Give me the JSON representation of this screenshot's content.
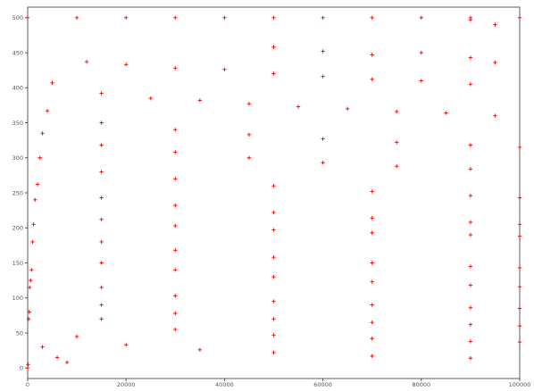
{
  "chart_data": {
    "type": "scatter",
    "marker": "+",
    "marker_color": "#ff0000",
    "title": "",
    "xlabel": "",
    "ylabel": "",
    "xlim": [
      0,
      100000
    ],
    "ylim": [
      -15,
      515
    ],
    "grid": false,
    "legend": "none",
    "x_ticks": [
      0,
      20000,
      40000,
      60000,
      80000,
      100000
    ],
    "x_tick_labels": [
      "0",
      "20000",
      "40000",
      "60000",
      "80000",
      "100000"
    ],
    "y_ticks": [
      0,
      50,
      100,
      150,
      200,
      250,
      300,
      350,
      400,
      450,
      500
    ],
    "y_tick_labels": [
      "0",
      "50",
      "100",
      "150",
      "200",
      "250",
      "300",
      "350",
      "400",
      "450",
      "500"
    ],
    "series": [
      {
        "values_xy": [
          [
            0,
            500
          ],
          [
            10000,
            500
          ],
          [
            20000,
            500
          ],
          [
            30000,
            500
          ],
          [
            40000,
            500
          ],
          [
            50000,
            500
          ],
          [
            60000,
            500
          ],
          [
            70000,
            500
          ],
          [
            80000,
            500
          ],
          [
            90000,
            500
          ],
          [
            100000,
            500
          ],
          [
            90000,
            497
          ],
          [
            95000,
            490
          ],
          [
            50000,
            458
          ],
          [
            60000,
            452
          ],
          [
            70000,
            447
          ],
          [
            80000,
            450
          ],
          [
            90000,
            443
          ],
          [
            95000,
            436
          ],
          [
            12000,
            437
          ],
          [
            20000,
            433
          ],
          [
            30000,
            428
          ],
          [
            40000,
            426
          ],
          [
            50000,
            420
          ],
          [
            60000,
            416
          ],
          [
            70000,
            412
          ],
          [
            80000,
            410
          ],
          [
            90000,
            405
          ],
          [
            5000,
            407
          ],
          [
            15000,
            392
          ],
          [
            25000,
            385
          ],
          [
            35000,
            382
          ],
          [
            45000,
            377
          ],
          [
            55000,
            373
          ],
          [
            65000,
            370
          ],
          [
            75000,
            366
          ],
          [
            85000,
            364
          ],
          [
            95000,
            360
          ],
          [
            4000,
            367
          ],
          [
            15000,
            350
          ],
          [
            30000,
            340
          ],
          [
            45000,
            333
          ],
          [
            60000,
            327
          ],
          [
            75000,
            322
          ],
          [
            90000,
            318
          ],
          [
            100000,
            315
          ],
          [
            3000,
            335
          ],
          [
            15000,
            318
          ],
          [
            30000,
            308
          ],
          [
            45000,
            300
          ],
          [
            60000,
            293
          ],
          [
            75000,
            288
          ],
          [
            90000,
            284
          ],
          [
            2500,
            300
          ],
          [
            15000,
            280
          ],
          [
            30000,
            270
          ],
          [
            50000,
            260
          ],
          [
            70000,
            252
          ],
          [
            90000,
            246
          ],
          [
            100000,
            243
          ],
          [
            2000,
            262
          ],
          [
            15000,
            243
          ],
          [
            30000,
            232
          ],
          [
            50000,
            222
          ],
          [
            70000,
            214
          ],
          [
            90000,
            208
          ],
          [
            100000,
            205
          ],
          [
            1500,
            240
          ],
          [
            15000,
            212
          ],
          [
            30000,
            203
          ],
          [
            50000,
            197
          ],
          [
            70000,
            193
          ],
          [
            90000,
            190
          ],
          [
            100000,
            188
          ],
          [
            1200,
            205
          ],
          [
            15000,
            180
          ],
          [
            30000,
            168
          ],
          [
            50000,
            158
          ],
          [
            70000,
            150
          ],
          [
            90000,
            145
          ],
          [
            100000,
            143
          ],
          [
            1000,
            180
          ],
          [
            15000,
            150
          ],
          [
            30000,
            140
          ],
          [
            50000,
            130
          ],
          [
            70000,
            123
          ],
          [
            90000,
            118
          ],
          [
            100000,
            116
          ],
          [
            800,
            140
          ],
          [
            15000,
            115
          ],
          [
            30000,
            103
          ],
          [
            50000,
            95
          ],
          [
            70000,
            90
          ],
          [
            90000,
            86
          ],
          [
            100000,
            85
          ],
          [
            600,
            125
          ],
          [
            15000,
            90
          ],
          [
            30000,
            78
          ],
          [
            50000,
            70
          ],
          [
            70000,
            65
          ],
          [
            90000,
            62
          ],
          [
            100000,
            60
          ],
          [
            400,
            115
          ],
          [
            15000,
            70
          ],
          [
            30000,
            55
          ],
          [
            50000,
            47
          ],
          [
            70000,
            42
          ],
          [
            90000,
            38
          ],
          [
            100000,
            37
          ],
          [
            300,
            80
          ],
          [
            10000,
            45
          ],
          [
            20000,
            33
          ],
          [
            35000,
            26
          ],
          [
            50000,
            22
          ],
          [
            70000,
            17
          ],
          [
            90000,
            14
          ],
          [
            200,
            70
          ],
          [
            3000,
            30
          ],
          [
            6000,
            15
          ],
          [
            8000,
            8
          ],
          [
            100,
            5
          ],
          [
            0,
            0
          ]
        ]
      }
    ]
  }
}
